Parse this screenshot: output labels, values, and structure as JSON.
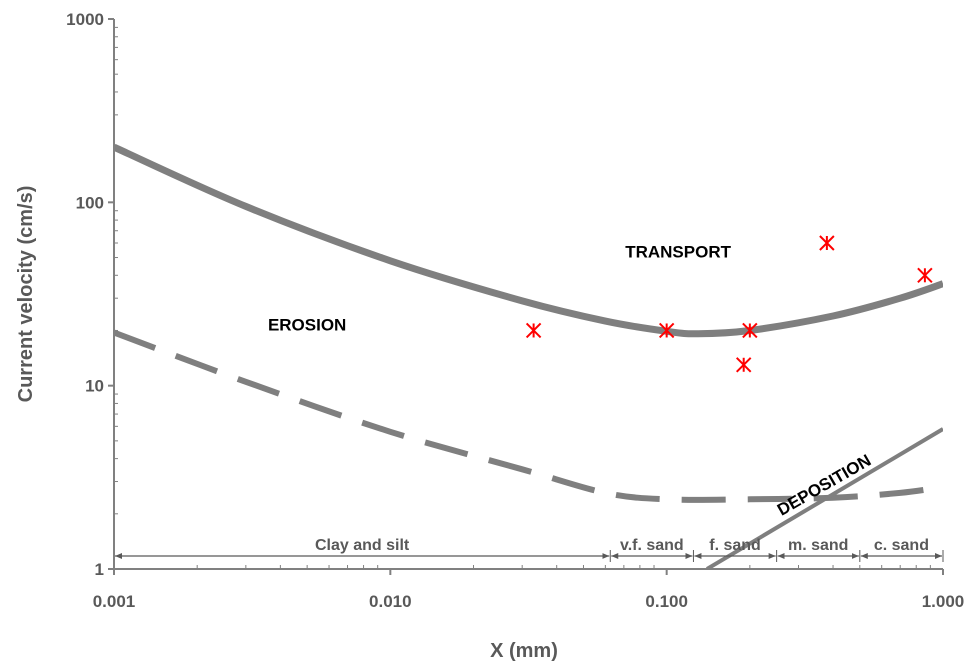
{
  "chart_data": {
    "type": "line",
    "xlabel": "X (mm)",
    "ylabel": "Current velocity (cm/s)",
    "xscale": "log",
    "yscale": "log",
    "xlim": [
      0.001,
      1.0
    ],
    "ylim": [
      1,
      1000
    ],
    "xticks": [
      {
        "value": 0.001,
        "label": "0.001"
      },
      {
        "value": 0.01,
        "label": "0.010"
      },
      {
        "value": 0.1,
        "label": "0.100"
      },
      {
        "value": 1.0,
        "label": "1.000"
      }
    ],
    "yticks": [
      {
        "value": 1,
        "label": "1"
      },
      {
        "value": 10,
        "label": "10"
      },
      {
        "value": 100,
        "label": "100"
      },
      {
        "value": 1000,
        "label": "1000"
      }
    ],
    "grid": false,
    "colors": {
      "curves": "#7f7f7f",
      "markers": "#ff0000",
      "axis": "#808080",
      "text": "#595959"
    },
    "series": [
      {
        "style": "solid",
        "points": [
          [
            0.001,
            200
          ],
          [
            0.003,
            95
          ],
          [
            0.01,
            48
          ],
          [
            0.03,
            29
          ],
          [
            0.06,
            22.5
          ],
          [
            0.1,
            19.8
          ],
          [
            0.13,
            19.2
          ],
          [
            0.2,
            20
          ],
          [
            0.4,
            24
          ],
          [
            0.7,
            30
          ],
          [
            1.0,
            36
          ]
        ]
      },
      {
        "style": "dashed",
        "points": [
          [
            0.001,
            19.5
          ],
          [
            0.003,
            10.5
          ],
          [
            0.01,
            5.6
          ],
          [
            0.03,
            3.5
          ],
          [
            0.06,
            2.6
          ],
          [
            0.1,
            2.4
          ],
          [
            0.2,
            2.4
          ],
          [
            0.4,
            2.45
          ],
          [
            0.7,
            2.6
          ],
          [
            1.0,
            2.8
          ]
        ]
      },
      {
        "style": "solid-thin",
        "points": [
          [
            0.14,
            1.0
          ],
          [
            1.0,
            5.8
          ]
        ]
      }
    ],
    "markers": {
      "symbol": "asterisk",
      "points": [
        [
          0.033,
          20
        ],
        [
          0.1,
          20
        ],
        [
          0.2,
          20
        ],
        [
          0.19,
          13
        ],
        [
          0.38,
          60
        ],
        [
          0.86,
          40
        ]
      ]
    },
    "annotations": [
      {
        "text": "TRANSPORT",
        "x": 0.11,
        "y": 50
      },
      {
        "text": "EROSION",
        "x": 0.005,
        "y": 20
      },
      {
        "text": "DEPOSITION",
        "x": 0.38,
        "y": 2.7,
        "rotation": -30
      }
    ],
    "size_classes": [
      {
        "label": "Clay and silt",
        "from": 0.001,
        "to": 0.0625
      },
      {
        "label": "v.f. sand",
        "from": 0.0625,
        "to": 0.125
      },
      {
        "label": "f. sand",
        "from": 0.125,
        "to": 0.25
      },
      {
        "label": "m. sand",
        "from": 0.25,
        "to": 0.5
      },
      {
        "label": "c. sand",
        "from": 0.5,
        "to": 1.0
      }
    ]
  }
}
